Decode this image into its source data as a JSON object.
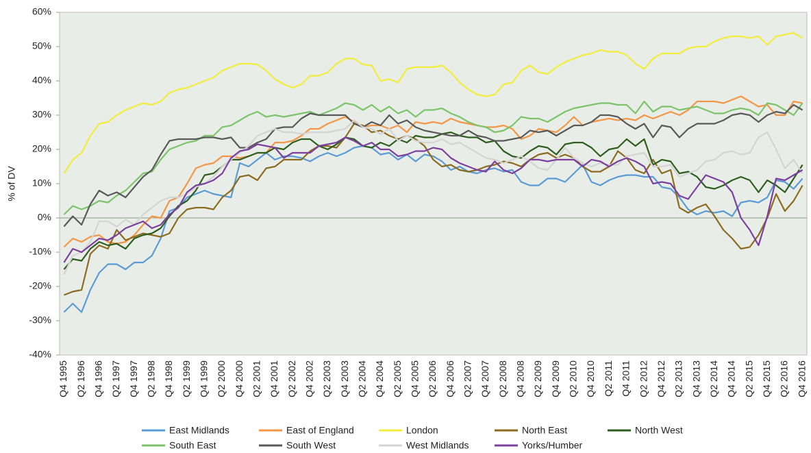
{
  "chart_data": {
    "type": "line",
    "y_label": "% of DV",
    "categories": [
      "Q4 1995",
      null,
      "Q2 1996",
      null,
      "Q4 1996",
      null,
      "Q2 1997",
      null,
      "Q4 1997",
      null,
      "Q2 1998",
      null,
      "Q4 1998",
      null,
      "Q2 1999",
      null,
      "Q4 1999",
      null,
      "Q2 2000",
      null,
      "Q4 2000",
      null,
      "Q2 2001",
      null,
      "Q4 2001",
      null,
      "Q2 2002",
      null,
      "Q4 2002",
      null,
      "Q2 2003",
      null,
      "Q4 2003",
      null,
      "Q2 2004",
      null,
      "Q4 2004",
      null,
      "Q2 2005",
      null,
      "Q4 2005",
      null,
      "Q2 2006",
      null,
      "Q4 2006",
      null,
      "Q2 2007",
      null,
      "Q4 2007",
      null,
      "Q2 2008",
      null,
      "Q4 2008",
      null,
      "Q2 2009",
      null,
      "Q4 2009",
      null,
      "Q2 2010",
      null,
      "Q4 2010",
      null,
      "Q2 2011",
      null,
      "Q4 2011",
      null,
      "Q2 2012",
      null,
      "Q4 2012",
      null,
      "Q2 2013",
      null,
      "Q4 2013",
      null,
      "Q2 2014",
      null,
      "Q4 2014",
      null,
      "Q2 2015",
      null,
      "Q4 2015",
      null,
      "Q2 2016",
      null,
      "Q4 2016"
    ],
    "series": [
      {
        "name": "East Midlands",
        "color": "#5b9bd5",
        "values": [
          -27.5,
          -25,
          -27.5,
          -21,
          -16,
          -13.5,
          -13.5,
          -15,
          -13,
          -13,
          -11,
          -6,
          2,
          3,
          6,
          7,
          8,
          7,
          6.5,
          6,
          16,
          15,
          17,
          19,
          17,
          18,
          18,
          17.5,
          16.5,
          18,
          19,
          18,
          19,
          20.5,
          21,
          20.5,
          18.5,
          19,
          17,
          18.5,
          16.5,
          18.5,
          18,
          16.5,
          14,
          15,
          13.5,
          13,
          14,
          14.5,
          13.5,
          14,
          10.5,
          9.5,
          9.5,
          11.5,
          11.5,
          10.5,
          13,
          15.5,
          10.5,
          9.5,
          11,
          12,
          12.5,
          12.5,
          12,
          12,
          9,
          8.5,
          6,
          2.5,
          1,
          2,
          1.5,
          2,
          0.5,
          4.5,
          5,
          4.5,
          6,
          11,
          10.5,
          8.5,
          11.5
        ]
      },
      {
        "name": "East of England",
        "color": "#f39645",
        "values": [
          -8.5,
          -6,
          -7,
          -5.5,
          -5,
          -7,
          -7.5,
          -7,
          -5,
          -2,
          0.5,
          0,
          5,
          6,
          10,
          14.5,
          15.5,
          16,
          18,
          18,
          17.5,
          18,
          19,
          19,
          22,
          22,
          22.5,
          24,
          26,
          26,
          27.5,
          28.5,
          29.5,
          28,
          26.5,
          27,
          27,
          26,
          27,
          25,
          28,
          27.5,
          28,
          27.5,
          29,
          28,
          27.5,
          27,
          26.5,
          26.5,
          27,
          26,
          23,
          24,
          26,
          25.5,
          25,
          27,
          29.5,
          27,
          28,
          28.5,
          29,
          28.5,
          29,
          28.5,
          30,
          29,
          30,
          31,
          30,
          31.5,
          34,
          34,
          34,
          33.5,
          34.5,
          35.5,
          34,
          32.5,
          33,
          30,
          30,
          34,
          33.5
        ]
      },
      {
        "name": "London",
        "color": "#f2ec3c",
        "values": [
          13,
          17,
          19,
          24,
          27.5,
          28,
          30,
          31.5,
          32.5,
          33.5,
          33,
          34,
          36.5,
          37.5,
          38,
          39,
          40,
          41,
          43,
          44,
          45,
          45,
          44.8,
          43,
          40.5,
          39,
          38,
          39,
          41.5,
          41.5,
          42.5,
          45,
          46.5,
          46.5,
          44.8,
          44.5,
          40,
          40.5,
          39.5,
          43.5,
          44,
          44,
          44,
          44.5,
          42.5,
          39.5,
          37.5,
          36,
          35.5,
          36,
          39,
          39.5,
          43,
          44.5,
          42.5,
          42,
          44,
          45.5,
          46.5,
          47.5,
          48,
          49,
          48.5,
          48.5,
          47.5,
          45,
          43.5,
          46.5,
          48,
          48,
          48,
          49.5,
          50,
          50,
          51.5,
          52.5,
          53,
          53,
          52.5,
          53,
          50.5,
          53,
          53.5,
          54,
          52.5
        ]
      },
      {
        "name": "North East",
        "color": "#8b6b1f",
        "values": [
          -22.5,
          -21.5,
          -21,
          -10.5,
          -8,
          -9,
          -3.5,
          -6.5,
          -5.5,
          -4.5,
          -5,
          -5.5,
          -4.5,
          0,
          2.5,
          3,
          3,
          2.5,
          6,
          8,
          12,
          12.5,
          11,
          14.5,
          15,
          17,
          17,
          17,
          19.5,
          21,
          21,
          20.5,
          23.5,
          27.5,
          27,
          25,
          25.5,
          24,
          23,
          24,
          23,
          21,
          17,
          15,
          15.5,
          14,
          13.5,
          14,
          15,
          15.5,
          16.5,
          16,
          15,
          17,
          18.5,
          19,
          17.5,
          18.5,
          17.5,
          15,
          13.5,
          13.5,
          15,
          19.5,
          17.5,
          14,
          13,
          17,
          13,
          14,
          3,
          1.5,
          3,
          4,
          0.5,
          -3.5,
          -6,
          -9,
          -8.5,
          -5,
          0,
          7,
          2,
          5,
          9.5
        ]
      },
      {
        "name": "North West",
        "color": "#2e5e1e",
        "values": [
          -15,
          -12,
          -12.5,
          -9,
          -7,
          -8,
          -7.5,
          -9,
          -6,
          -5,
          -4.5,
          -3,
          0.5,
          3.5,
          5,
          8,
          12.5,
          13,
          15,
          17,
          17,
          18,
          19,
          19,
          20.5,
          20,
          22,
          23,
          23,
          21,
          20,
          21.5,
          23.5,
          23,
          21,
          20.5,
          22,
          21,
          23,
          22,
          24,
          23.5,
          23.5,
          24.5,
          25,
          24,
          23.5,
          23.5,
          22,
          22.5,
          19.5,
          18,
          17.5,
          19.5,
          21,
          20.5,
          18.5,
          21.5,
          22,
          22,
          20.5,
          18,
          20,
          20.5,
          23,
          21,
          23,
          15.5,
          17,
          16.5,
          13,
          13.5,
          12,
          9,
          8.5,
          9.5,
          11,
          12,
          11,
          7.5,
          11,
          9.5,
          7.5,
          11.5,
          15.5
        ]
      },
      {
        "name": "South East",
        "color": "#7cc46a",
        "values": [
          1,
          3.5,
          2.5,
          3.5,
          5,
          4.5,
          6.5,
          8,
          10.5,
          13,
          13.5,
          17,
          20,
          21,
          22,
          22.5,
          24,
          24,
          26.5,
          27,
          28.5,
          30,
          31,
          29.5,
          30,
          29.5,
          30,
          30.5,
          31,
          30,
          31,
          32,
          33.5,
          33,
          31.5,
          33,
          31,
          32.5,
          30.5,
          31.5,
          29.5,
          31.5,
          31.5,
          32,
          30.5,
          29.5,
          28,
          27,
          26.5,
          25,
          25.5,
          27,
          29.5,
          29,
          29,
          28,
          29.5,
          31,
          32,
          32.5,
          33,
          33.5,
          33.5,
          33,
          33,
          30.5,
          34,
          31,
          32.5,
          32.5,
          31.5,
          32,
          32.5,
          31.5,
          30.5,
          30.5,
          31.5,
          32,
          31.5,
          30,
          33.5,
          33,
          31.5,
          30,
          33.5
        ]
      },
      {
        "name": "South West",
        "color": "#595959",
        "values": [
          -2.5,
          0.5,
          -2,
          4,
          8,
          6.5,
          7.5,
          6,
          9,
          12,
          14,
          18.5,
          22.5,
          23,
          23,
          23,
          23.5,
          23.5,
          23,
          23.5,
          20.5,
          20.5,
          22,
          23,
          26,
          26.5,
          26.5,
          29,
          30.5,
          30,
          30,
          30,
          30,
          27.5,
          26.5,
          28,
          27,
          30,
          27.5,
          28.5,
          26.5,
          25.5,
          25,
          24.5,
          24,
          24,
          25.5,
          24,
          23.5,
          22.5,
          22.5,
          23,
          23.5,
          25.5,
          25,
          25.5,
          24,
          25.5,
          27,
          27,
          28,
          30,
          30,
          29.5,
          27.5,
          26,
          27.5,
          23.5,
          27,
          26.5,
          23.5,
          26,
          27.5,
          27.5,
          27.5,
          28.5,
          30,
          30.5,
          30,
          28,
          30,
          31,
          30.5,
          33,
          31.5
        ]
      },
      {
        "name": "West Midlands",
        "color": "#d4d4d4",
        "values": [
          -16.5,
          -11,
          -10,
          -7,
          -1,
          -1,
          -2.5,
          -0.5,
          -2,
          1,
          3,
          5,
          6,
          6,
          7,
          9,
          10,
          12,
          15,
          17,
          19,
          21,
          24,
          25,
          26,
          25,
          25,
          24.5,
          25,
          25,
          25,
          25.5,
          26,
          28.5,
          26.5,
          26,
          24.5,
          26,
          22.5,
          24,
          22.5,
          22,
          22,
          23,
          21.5,
          22,
          20.5,
          19,
          17.5,
          17,
          16,
          17,
          18,
          16.5,
          14.5,
          14,
          17,
          20.5,
          17.5,
          16,
          15,
          16,
          15.5,
          15.5,
          18,
          18.5,
          19,
          15,
          15,
          15.5,
          12,
          13,
          14,
          16.5,
          17,
          19,
          19.5,
          18.5,
          19,
          23.5,
          25,
          20,
          14.5,
          17,
          13
        ]
      },
      {
        "name": "Yorks/Humber",
        "color": "#7b3f9e",
        "values": [
          -13,
          -9,
          -10,
          -8,
          -6,
          -6.5,
          -5,
          -3,
          -2,
          -1,
          -3,
          -2,
          1,
          3,
          7.5,
          9.5,
          10,
          11,
          13,
          17.5,
          19.5,
          20,
          21.5,
          21,
          20.5,
          17.5,
          19,
          19,
          19,
          21,
          21.5,
          22,
          23.5,
          22.5,
          21,
          22,
          20,
          20,
          18,
          18.5,
          19.5,
          19.5,
          20.5,
          20,
          17.5,
          16,
          15,
          14,
          13.5,
          16.5,
          14,
          13,
          14.5,
          17,
          17,
          16.5,
          17,
          17,
          17,
          15,
          17,
          16.5,
          15,
          16.5,
          17.5,
          16.5,
          15,
          10,
          10.5,
          10,
          6.5,
          5.5,
          9,
          12.5,
          11.5,
          10.5,
          7.5,
          0,
          -3.5,
          -8,
          0.5,
          11.5,
          11,
          12.5,
          14
        ]
      }
    ],
    "ylim": [
      -40,
      60
    ],
    "yticks": [
      {
        "value": -40,
        "label": "-40%"
      },
      {
        "value": -30,
        "label": "-30%"
      },
      {
        "value": -20,
        "label": "-20%"
      },
      {
        "value": -10,
        "label": "-10%"
      },
      {
        "value": 0,
        "label": "0%"
      },
      {
        "value": 10,
        "label": "10%"
      },
      {
        "value": 20,
        "label": "20%"
      },
      {
        "value": 30,
        "label": "30%"
      },
      {
        "value": 40,
        "label": "40%"
      },
      {
        "value": 50,
        "label": "50%"
      },
      {
        "value": 60,
        "label": "60%"
      }
    ],
    "background": "#e9ede8",
    "legend": "bottom"
  }
}
